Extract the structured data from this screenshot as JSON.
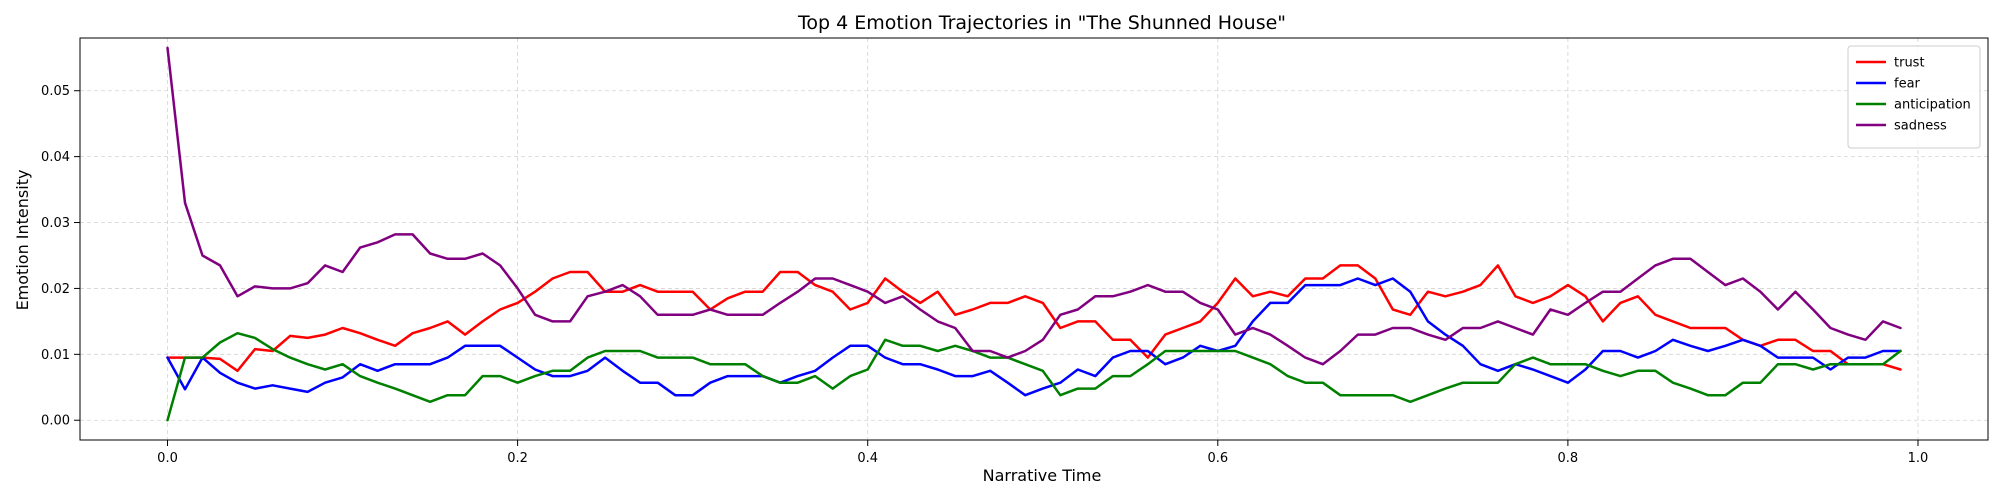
{
  "chart_data": {
    "type": "line",
    "title": "Top 4 Emotion Trajectories in \"The Shunned House\"",
    "xlabel": "Narrative Time",
    "ylabel": "Emotion Intensity",
    "xlim": [
      -0.05,
      1.04
    ],
    "ylim": [
      -0.003,
      0.058
    ],
    "x_ticks": [
      0.0,
      0.2,
      0.4,
      0.6,
      0.8,
      1.0
    ],
    "x_tick_labels": [
      "0.0",
      "0.2",
      "0.4",
      "0.6",
      "0.8",
      "1.0"
    ],
    "y_ticks": [
      0.0,
      0.01,
      0.02,
      0.03,
      0.04,
      0.05
    ],
    "y_tick_labels": [
      "0.00",
      "0.01",
      "0.02",
      "0.03",
      "0.04",
      "0.05"
    ],
    "grid": true,
    "legend_position": "top-right",
    "x": [
      0.0,
      0.01,
      0.02,
      0.03,
      0.04,
      0.05,
      0.06,
      0.07,
      0.08,
      0.09,
      0.1,
      0.11,
      0.12,
      0.13,
      0.14,
      0.15,
      0.16,
      0.17,
      0.18,
      0.19,
      0.2,
      0.21,
      0.22,
      0.23,
      0.24,
      0.25,
      0.26,
      0.27,
      0.28,
      0.29,
      0.3,
      0.31,
      0.32,
      0.33,
      0.34,
      0.35,
      0.36,
      0.37,
      0.38,
      0.39,
      0.4,
      0.41,
      0.42,
      0.43,
      0.44,
      0.45,
      0.46,
      0.47,
      0.48,
      0.49,
      0.5,
      0.51,
      0.52,
      0.53,
      0.54,
      0.55,
      0.56,
      0.57,
      0.58,
      0.59,
      0.6,
      0.61,
      0.62,
      0.63,
      0.64,
      0.65,
      0.66,
      0.67,
      0.68,
      0.69,
      0.7,
      0.71,
      0.72,
      0.73,
      0.74,
      0.75,
      0.76,
      0.77,
      0.78,
      0.79,
      0.8,
      0.81,
      0.82,
      0.83,
      0.84,
      0.85,
      0.86,
      0.87,
      0.88,
      0.89,
      0.9,
      0.91,
      0.92,
      0.93,
      0.94,
      0.95,
      0.96,
      0.97,
      0.98,
      0.99
    ],
    "series": [
      {
        "name": "trust",
        "color": "#ff0000",
        "values": [
          0.0095,
          0.0095,
          0.0095,
          0.0093,
          0.0075,
          0.0108,
          0.0105,
          0.0128,
          0.0125,
          0.013,
          0.014,
          0.0132,
          0.0122,
          0.0113,
          0.0132,
          0.014,
          0.015,
          0.013,
          0.015,
          0.0168,
          0.0178,
          0.0195,
          0.0215,
          0.0225,
          0.0225,
          0.0195,
          0.0195,
          0.0205,
          0.0195,
          0.0195,
          0.0195,
          0.0168,
          0.0185,
          0.0195,
          0.0195,
          0.0225,
          0.0225,
          0.0205,
          0.0195,
          0.0168,
          0.0178,
          0.0215,
          0.0195,
          0.0178,
          0.0195,
          0.016,
          0.0168,
          0.0178,
          0.0178,
          0.0188,
          0.0178,
          0.014,
          0.015,
          0.015,
          0.0122,
          0.0122,
          0.0095,
          0.013,
          0.014,
          0.015,
          0.0178,
          0.0215,
          0.0188,
          0.0195,
          0.0188,
          0.0215,
          0.0215,
          0.0235,
          0.0235,
          0.0215,
          0.0168,
          0.016,
          0.0195,
          0.0188,
          0.0195,
          0.0205,
          0.0235,
          0.0188,
          0.0178,
          0.0188,
          0.0205,
          0.0188,
          0.015,
          0.0178,
          0.0188,
          0.016,
          0.015,
          0.014,
          0.014,
          0.014,
          0.0122,
          0.0113,
          0.0122,
          0.0122,
          0.0105,
          0.0105,
          0.0085,
          0.0085,
          0.0085,
          0.0077
        ]
      },
      {
        "name": "fear",
        "color": "#0000ff",
        "values": [
          0.0095,
          0.0047,
          0.0095,
          0.0072,
          0.0057,
          0.0048,
          0.0053,
          0.0048,
          0.0043,
          0.0057,
          0.0065,
          0.0085,
          0.0075,
          0.0085,
          0.0085,
          0.0085,
          0.0095,
          0.0113,
          0.0113,
          0.0113,
          0.0095,
          0.0077,
          0.0067,
          0.0067,
          0.0075,
          0.0095,
          0.0075,
          0.0057,
          0.0057,
          0.0038,
          0.0038,
          0.0057,
          0.0067,
          0.0067,
          0.0067,
          0.0057,
          0.0067,
          0.0075,
          0.0095,
          0.0113,
          0.0113,
          0.0095,
          0.0085,
          0.0085,
          0.0077,
          0.0067,
          0.0067,
          0.0075,
          0.0057,
          0.0038,
          0.0048,
          0.0057,
          0.0077,
          0.0067,
          0.0095,
          0.0105,
          0.0105,
          0.0085,
          0.0095,
          0.0113,
          0.0105,
          0.0113,
          0.015,
          0.0178,
          0.0178,
          0.0205,
          0.0205,
          0.0205,
          0.0215,
          0.0205,
          0.0215,
          0.0195,
          0.015,
          0.013,
          0.0113,
          0.0085,
          0.0075,
          0.0085,
          0.0077,
          0.0067,
          0.0057,
          0.0077,
          0.0105,
          0.0105,
          0.0095,
          0.0105,
          0.0122,
          0.0113,
          0.0105,
          0.0113,
          0.0122,
          0.0113,
          0.0095,
          0.0095,
          0.0095,
          0.0077,
          0.0095,
          0.0095,
          0.0105,
          0.0105
        ]
      },
      {
        "name": "anticipation",
        "color": "#008000",
        "values": [
          0.0,
          0.0095,
          0.0095,
          0.0118,
          0.0132,
          0.0125,
          0.0108,
          0.0095,
          0.0085,
          0.0077,
          0.0085,
          0.0067,
          0.0057,
          0.0048,
          0.0038,
          0.0028,
          0.0038,
          0.0038,
          0.0067,
          0.0067,
          0.0057,
          0.0067,
          0.0075,
          0.0075,
          0.0095,
          0.0105,
          0.0105,
          0.0105,
          0.0095,
          0.0095,
          0.0095,
          0.0085,
          0.0085,
          0.0085,
          0.0067,
          0.0057,
          0.0057,
          0.0067,
          0.0048,
          0.0067,
          0.0077,
          0.0122,
          0.0113,
          0.0113,
          0.0105,
          0.0113,
          0.0105,
          0.0095,
          0.0095,
          0.0085,
          0.0075,
          0.0038,
          0.0048,
          0.0048,
          0.0067,
          0.0067,
          0.0085,
          0.0105,
          0.0105,
          0.0105,
          0.0105,
          0.0105,
          0.0095,
          0.0085,
          0.0067,
          0.0057,
          0.0057,
          0.0038,
          0.0038,
          0.0038,
          0.0038,
          0.0028,
          0.0038,
          0.0048,
          0.0057,
          0.0057,
          0.0057,
          0.0085,
          0.0095,
          0.0085,
          0.0085,
          0.0085,
          0.0075,
          0.0067,
          0.0075,
          0.0075,
          0.0057,
          0.0048,
          0.0038,
          0.0038,
          0.0057,
          0.0057,
          0.0085,
          0.0085,
          0.0077,
          0.0085,
          0.0085,
          0.0085,
          0.0085,
          0.0105
        ]
      },
      {
        "name": "sadness",
        "color": "#800080",
        "values": [
          0.0565,
          0.033,
          0.025,
          0.0235,
          0.0188,
          0.0203,
          0.02,
          0.02,
          0.0208,
          0.0235,
          0.0225,
          0.0262,
          0.027,
          0.0282,
          0.0282,
          0.0253,
          0.0245,
          0.0245,
          0.0253,
          0.0235,
          0.02,
          0.016,
          0.015,
          0.015,
          0.0188,
          0.0195,
          0.0205,
          0.0188,
          0.016,
          0.016,
          0.016,
          0.0168,
          0.016,
          0.016,
          0.016,
          0.0178,
          0.0195,
          0.0215,
          0.0215,
          0.0205,
          0.0195,
          0.0178,
          0.0188,
          0.0168,
          0.015,
          0.014,
          0.0105,
          0.0105,
          0.0095,
          0.0105,
          0.0122,
          0.016,
          0.0168,
          0.0188,
          0.0188,
          0.0195,
          0.0205,
          0.0195,
          0.0195,
          0.0178,
          0.0168,
          0.013,
          0.014,
          0.013,
          0.0113,
          0.0095,
          0.0085,
          0.0105,
          0.013,
          0.013,
          0.014,
          0.014,
          0.013,
          0.0122,
          0.014,
          0.014,
          0.015,
          0.014,
          0.013,
          0.0168,
          0.016,
          0.0178,
          0.0195,
          0.0195,
          0.0215,
          0.0235,
          0.0245,
          0.0245,
          0.0225,
          0.0205,
          0.0215,
          0.0195,
          0.0168,
          0.0195,
          0.0168,
          0.014,
          0.013,
          0.0122,
          0.015,
          0.014
        ]
      }
    ]
  }
}
